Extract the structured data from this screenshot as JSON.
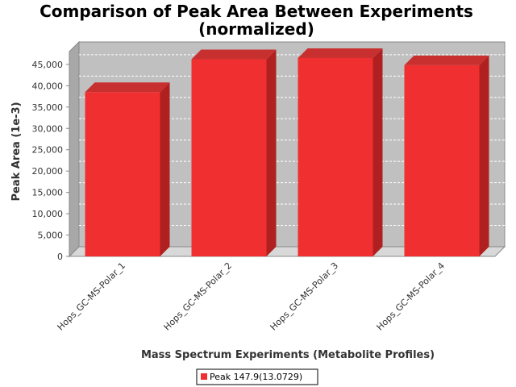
{
  "chart_data": {
    "type": "bar",
    "title": "Comparison of Peak Area Between Experiments",
    "subtitle": "(normalized)",
    "xlabel": "Mass Spectrum Experiments (Metabolite Profiles)",
    "ylabel": "Peak Area (1e-3)",
    "categories": [
      "Hops_GC-MS-Polar_1",
      "Hops_GC-MS-Polar_2",
      "Hops_GC-MS-Polar_3",
      "Hops_GC-MS-Polar_4"
    ],
    "series": [
      {
        "name": "Peak 147.9(13.0729)",
        "values": [
          38500,
          46200,
          46500,
          44800
        ],
        "color": "#f03030"
      }
    ],
    "ylim": [
      0,
      48000
    ],
    "yticks": [
      0,
      5000,
      10000,
      15000,
      20000,
      25000,
      30000,
      35000,
      40000,
      45000
    ],
    "ytick_labels": [
      "0",
      "5,000",
      "10,000",
      "15,000",
      "20,000",
      "25,000",
      "30,000",
      "35,000",
      "40,000",
      "45,000"
    ],
    "grid": true,
    "legend_position": "bottom",
    "colors": {
      "bar": "#f03030",
      "bar_side": "#b02020",
      "bar_top": "#c83030",
      "plot_background": "#c0c0c0",
      "floor": "#d8d8d8"
    }
  }
}
